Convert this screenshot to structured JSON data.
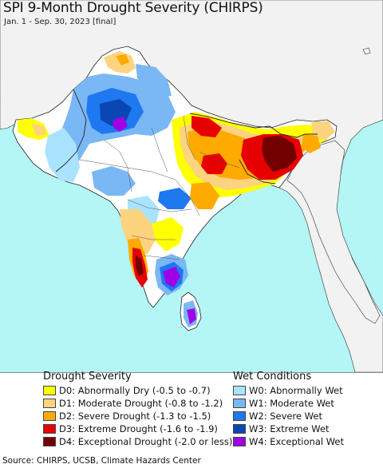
{
  "title": "SPI 9-Month Drought Severity (CHIRPS)",
  "subtitle": "Jan. 1 - Sep. 30, 2023 [final]",
  "legend": {
    "drought": {
      "heading": "Drought Severity",
      "items": [
        {
          "label": "D0: Abnormally Dry (-0.5 to -0.7)",
          "color": "#ffff00"
        },
        {
          "label": "D1: Moderate Drought (-0.8 to -1.2)",
          "color": "#fcd37f"
        },
        {
          "label": "D2: Severe Drought (-1.3 to -1.5)",
          "color": "#ffaa00"
        },
        {
          "label": "D3: Extreme Drought (-1.6 to -1.9)",
          "color": "#e60000"
        },
        {
          "label": "D4: Exceptional Drought (-2.0 or less)",
          "color": "#730000"
        }
      ]
    },
    "wet": {
      "heading": "Wet Conditions",
      "items": [
        {
          "label": "W0: Abnormally Wet",
          "color": "#aae3ff"
        },
        {
          "label": "W1: Moderate Wet",
          "color": "#7ab7f5"
        },
        {
          "label": "W2: Severe Wet",
          "color": "#1e78f0"
        },
        {
          "label": "W3: Extreme Wet",
          "color": "#0a46b4"
        },
        {
          "label": "W4: Exceptional Wet",
          "color": "#a000e6"
        }
      ]
    }
  },
  "source": "Source: CHIRPS, UCSB, Climate Hazards Center",
  "map_colors": {
    "ocean": "#b4f5f5",
    "land_outside": "#f2f2f2",
    "land_normal": "#ffffff",
    "border": "#222222"
  }
}
